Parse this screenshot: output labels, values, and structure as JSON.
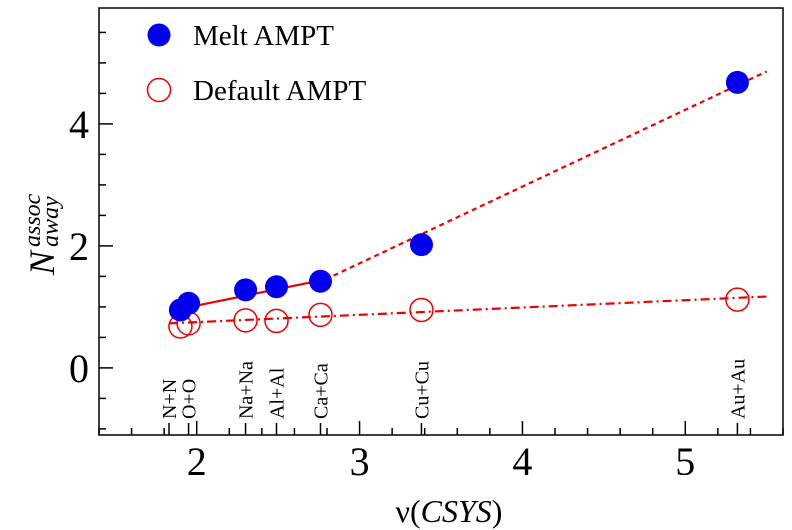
{
  "chart_data": {
    "type": "scatter",
    "xlabel": "ν(CSYS)",
    "xlabel_prefix": "ν(",
    "xlabel_var": "CSYS",
    "xlabel_suffix": ")",
    "ylabel_main": "N",
    "ylabel_sup": "assoc",
    "ylabel_sub": "away",
    "xlim": [
      1.4,
      5.6
    ],
    "ylim": [
      -1.1,
      5.9
    ],
    "xticks": [
      {
        "value": 2,
        "label": "2"
      },
      {
        "value": 3,
        "label": "3"
      },
      {
        "value": 4,
        "label": "4"
      },
      {
        "value": 5,
        "label": "5"
      }
    ],
    "yticks": [
      {
        "value": 0,
        "label": "0"
      },
      {
        "value": 2,
        "label": "2"
      },
      {
        "value": 4,
        "label": "4"
      }
    ],
    "grid": false,
    "legend_position": "top-left",
    "series": [
      {
        "name": "Melt AMPT",
        "marker": "filled-circle",
        "color": "#0000ee",
        "points": [
          {
            "x": 1.9,
            "y": 0.95
          },
          {
            "x": 1.95,
            "y": 1.06
          },
          {
            "x": 2.3,
            "y": 1.28
          },
          {
            "x": 2.49,
            "y": 1.33
          },
          {
            "x": 2.76,
            "y": 1.42
          },
          {
            "x": 3.38,
            "y": 2.02
          },
          {
            "x": 5.32,
            "y": 4.68
          }
        ]
      },
      {
        "name": "Default AMPT",
        "marker": "open-circle",
        "color": "#ee0000",
        "points": [
          {
            "x": 1.9,
            "y": 0.68
          },
          {
            "x": 1.95,
            "y": 0.73
          },
          {
            "x": 2.3,
            "y": 0.78
          },
          {
            "x": 2.49,
            "y": 0.77
          },
          {
            "x": 2.76,
            "y": 0.87
          },
          {
            "x": 3.38,
            "y": 0.95
          },
          {
            "x": 5.32,
            "y": 1.12
          }
        ]
      }
    ],
    "fit_lines": [
      {
        "style": "solid",
        "color": "#ee0000",
        "x": [
          1.83,
          2.79
        ],
        "y": [
          0.93,
          1.45
        ]
      },
      {
        "style": "dashed",
        "color": "#ee0000",
        "x": [
          2.79,
          5.5
        ],
        "y": [
          1.45,
          4.86
        ]
      },
      {
        "style": "dashdot",
        "color": "#ee0000",
        "x": [
          1.83,
          5.5
        ],
        "y": [
          0.73,
          1.17
        ]
      }
    ],
    "annotations": [
      {
        "x": 1.83,
        "label": "N+N"
      },
      {
        "x": 1.95,
        "label": "O+O"
      },
      {
        "x": 2.3,
        "label": "Na+Na"
      },
      {
        "x": 2.49,
        "label": "Al+Al"
      },
      {
        "x": 2.76,
        "label": "Ca+Ca"
      },
      {
        "x": 3.38,
        "label": "Cu+Cu"
      },
      {
        "x": 5.32,
        "label": "Au+Au"
      }
    ]
  }
}
